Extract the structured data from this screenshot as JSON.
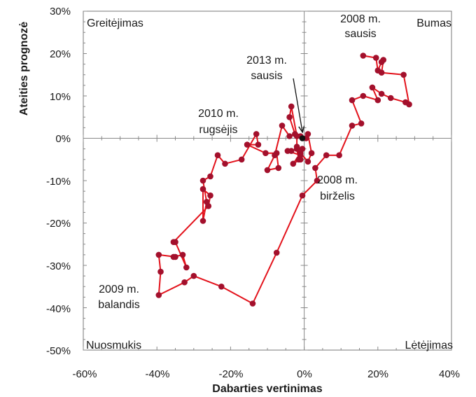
{
  "chart_data": {
    "type": "line",
    "xlabel": "Dabarties vertinimas",
    "ylabel": "Ateities prognozė",
    "xlim": [
      -60,
      40
    ],
    "ylim": [
      -50,
      30
    ],
    "x_ticks": [
      "-60%",
      "-40%",
      "-20%",
      "0%",
      "20%",
      "40%"
    ],
    "y_ticks": [
      "30%",
      "20%",
      "10%",
      "0%",
      "-10%",
      "-20%",
      "-30%",
      "-40%",
      "-50%"
    ],
    "x_tick_values": [
      -60,
      -40,
      -20,
      0,
      20,
      40
    ],
    "y_tick_values": [
      30,
      20,
      10,
      0,
      -10,
      -20,
      -30,
      -40,
      -50
    ],
    "quadrant_labels": [
      "Greitėjimas",
      "Bumas",
      "Nuosmukis",
      "Lėtėjimas"
    ],
    "annotations": [
      [
        "2008 m.",
        "sausis"
      ],
      [
        "2013 m.",
        "sausis"
      ],
      [
        "2010 m.",
        "rugsėjis"
      ],
      [
        "2008 m.",
        "birželis"
      ],
      [
        "2009 m.",
        "balandis"
      ]
    ],
    "colors": {
      "line": "#e3121b",
      "marker": "#a3102c",
      "highlight": "#111111"
    },
    "grid": false,
    "series": [
      {
        "values": [
          [
            16,
            19.5
          ],
          [
            19.5,
            19
          ],
          [
            20,
            16
          ],
          [
            21,
            18
          ],
          [
            21.5,
            18.5
          ],
          [
            21,
            15.5
          ],
          [
            27,
            15
          ],
          [
            28.5,
            8
          ],
          [
            27.5,
            8.5
          ],
          [
            23.5,
            9.5
          ],
          [
            21,
            10.5
          ],
          [
            18.5,
            12
          ],
          [
            20,
            9
          ],
          [
            16,
            10
          ],
          [
            13,
            9
          ],
          [
            15.5,
            3.5
          ],
          [
            13,
            3
          ],
          [
            9.5,
            -4
          ],
          [
            6,
            -4
          ],
          [
            3,
            -7
          ],
          [
            3.5,
            -10
          ],
          [
            -0.5,
            -13.5
          ],
          [
            -7.5,
            -27
          ],
          [
            -14,
            -39
          ],
          [
            -22.5,
            -35
          ],
          [
            -30,
            -32.5
          ],
          [
            -32.5,
            -34
          ],
          [
            -39.5,
            -37
          ],
          [
            -39,
            -31.5
          ],
          [
            -39.5,
            -27.5
          ],
          [
            -35,
            -28
          ],
          [
            -35.5,
            -28
          ],
          [
            -33,
            -27.5
          ],
          [
            -32,
            -30.5
          ],
          [
            -35,
            -24.5
          ],
          [
            -35.5,
            -24.5
          ],
          [
            -26,
            -16
          ],
          [
            -25.5,
            -13.5
          ],
          [
            -27.5,
            -12
          ],
          [
            -27.5,
            -19.5
          ],
          [
            -26.5,
            -15
          ],
          [
            -27.5,
            -10
          ],
          [
            -25.5,
            -9
          ],
          [
            -23.5,
            -4
          ],
          [
            -21.5,
            -6
          ],
          [
            -17,
            -5
          ],
          [
            -13,
            1
          ],
          [
            -12.5,
            -1.5
          ],
          [
            -15.5,
            -1.5
          ],
          [
            -10.5,
            -3.5
          ],
          [
            -7.5,
            -3.5
          ],
          [
            -7,
            -7
          ],
          [
            -10,
            -7.5
          ],
          [
            -8,
            -4
          ],
          [
            -6,
            3
          ],
          [
            -4,
            0.5
          ],
          [
            -2.5,
            1
          ],
          [
            -4,
            5
          ],
          [
            -3.5,
            7.5
          ],
          [
            -2,
            0.5
          ],
          [
            -2,
            -2
          ],
          [
            -1.5,
            -5
          ],
          [
            -2,
            -2.5
          ],
          [
            -3.5,
            -3
          ],
          [
            -4.5,
            -3
          ],
          [
            -1,
            -4
          ],
          [
            -0.5,
            -2.5
          ],
          [
            -1,
            -5
          ],
          [
            -3,
            -6
          ],
          [
            -1,
            -3.5
          ],
          [
            1,
            -5.5
          ],
          [
            2,
            -3.5
          ],
          [
            1,
            1
          ],
          [
            0.5,
            0
          ],
          [
            -1,
            0.5
          ]
        ]
      }
    ],
    "highlight_point": [
      -0.5,
      0
    ]
  }
}
